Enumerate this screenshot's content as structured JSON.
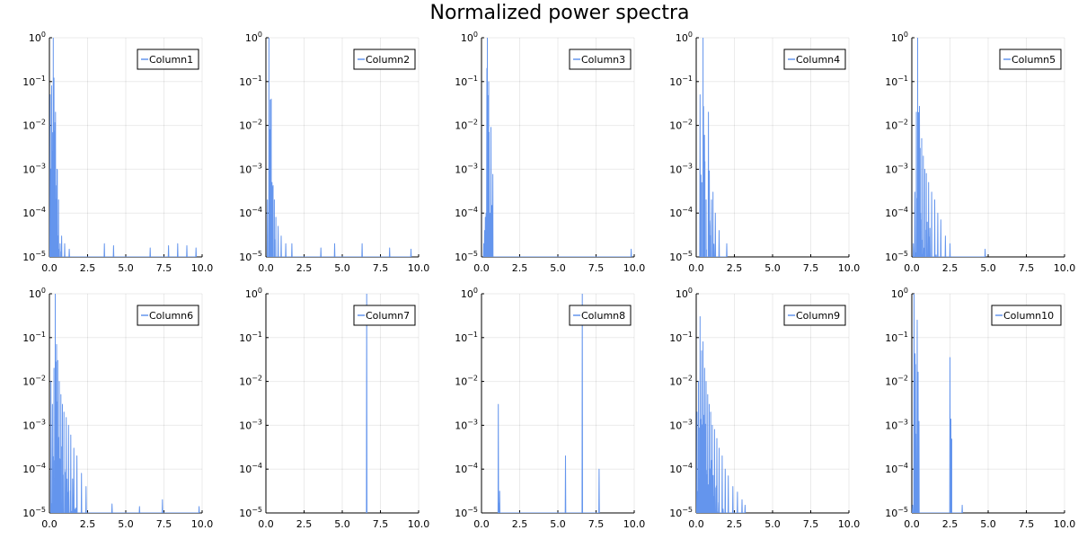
{
  "figure": {
    "title": "Normalized power spectra",
    "line_color": "#6495ed"
  },
  "chart_data": [
    {
      "type": "line",
      "legend": "Column1",
      "legend_position": "top-right",
      "grid": true,
      "xlim": [
        0,
        10
      ],
      "ylim": [
        1e-05,
        1
      ],
      "yscale": "log10",
      "x_ticks": [
        "0.0",
        "2.5",
        "5.0",
        "7.5",
        "10.0"
      ],
      "y_ticks": [
        "10^-5",
        "10^-4",
        "10^-3",
        "10^-2",
        "10^-1",
        "10^0"
      ],
      "peaks": [
        [
          0.05,
          0.05
        ],
        [
          0.1,
          0.001
        ],
        [
          0.15,
          0.08
        ],
        [
          0.2,
          0.002
        ],
        [
          0.25,
          1.0
        ],
        [
          0.3,
          0.12
        ],
        [
          0.35,
          0.0003
        ],
        [
          0.4,
          0.02
        ],
        [
          0.45,
          0.0001
        ],
        [
          0.5,
          0.001
        ],
        [
          0.55,
          3e-05
        ],
        [
          0.6,
          0.0002
        ],
        [
          0.7,
          2e-05
        ],
        [
          0.8,
          3e-05
        ],
        [
          1.0,
          2e-05
        ],
        [
          1.3,
          1.5e-05
        ],
        [
          3.6,
          2e-05
        ],
        [
          4.2,
          1.8e-05
        ],
        [
          6.6,
          1.6e-05
        ],
        [
          7.8,
          1.8e-05
        ],
        [
          8.4,
          2e-05
        ],
        [
          9.0,
          1.8e-05
        ],
        [
          9.6,
          1.6e-05
        ]
      ]
    },
    {
      "type": "line",
      "legend": "Column2",
      "legend_position": "top-right",
      "grid": true,
      "xlim": [
        0,
        10
      ],
      "ylim": [
        1e-05,
        1
      ],
      "yscale": "log10",
      "x_ticks": [
        "0.0",
        "2.5",
        "5.0",
        "7.5",
        "10.0"
      ],
      "y_ticks": [
        "10^-5",
        "10^-4",
        "10^-3",
        "10^-2",
        "10^-1",
        "10^0"
      ],
      "peaks": [
        [
          0.1,
          0.0002
        ],
        [
          0.2,
          1.0
        ],
        [
          0.25,
          0.003
        ],
        [
          0.3,
          0.0008
        ],
        [
          0.35,
          0.04
        ],
        [
          0.4,
          0.0005
        ],
        [
          0.45,
          0.0004
        ],
        [
          0.55,
          0.0002
        ],
        [
          0.65,
          8e-05
        ],
        [
          0.8,
          5e-05
        ],
        [
          1.0,
          3e-05
        ],
        [
          1.3,
          2e-05
        ],
        [
          1.7,
          2e-05
        ],
        [
          3.6,
          1.6e-05
        ],
        [
          4.5,
          2e-05
        ],
        [
          6.3,
          2e-05
        ],
        [
          8.1,
          1.6e-05
        ],
        [
          9.5,
          1.5e-05
        ]
      ]
    },
    {
      "type": "line",
      "legend": "Column3",
      "legend_position": "top-right",
      "grid": true,
      "xlim": [
        0,
        10
      ],
      "ylim": [
        1e-05,
        1
      ],
      "yscale": "log10",
      "x_ticks": [
        "0.0",
        "2.5",
        "5.0",
        "7.5",
        "10.0"
      ],
      "y_ticks": [
        "10^-5",
        "10^-4",
        "10^-3",
        "10^-2",
        "10^-1",
        "10^0"
      ],
      "peaks": [
        [
          0.15,
          2e-05
        ],
        [
          0.2,
          4e-05
        ],
        [
          0.25,
          8e-05
        ],
        [
          0.3,
          0.0001
        ],
        [
          0.35,
          0.2
        ],
        [
          0.38,
          1.0
        ],
        [
          0.45,
          0.0002
        ],
        [
          0.55,
          0.0001
        ],
        [
          0.62,
          0.009
        ],
        [
          0.7,
          3e-05
        ],
        [
          9.8,
          1.5e-05
        ]
      ]
    },
    {
      "type": "line",
      "legend": "Column4",
      "legend_position": "top-right",
      "grid": true,
      "xlim": [
        0,
        10
      ],
      "ylim": [
        1e-05,
        1
      ],
      "yscale": "log10",
      "x_ticks": [
        "0.0",
        "2.5",
        "5.0",
        "7.5",
        "10.0"
      ],
      "y_ticks": [
        "10^-5",
        "10^-4",
        "10^-3",
        "10^-2",
        "10^-1",
        "10^0"
      ],
      "peaks": [
        [
          0.25,
          0.05
        ],
        [
          0.35,
          0.00015
        ],
        [
          0.45,
          1.0
        ],
        [
          0.55,
          0.0005
        ],
        [
          0.65,
          0.0002
        ],
        [
          0.8,
          0.02
        ],
        [
          0.9,
          5e-05
        ],
        [
          1.0,
          0.0002
        ],
        [
          1.1,
          0.0003
        ],
        [
          1.25,
          0.0001
        ],
        [
          1.5,
          4e-05
        ],
        [
          2.0,
          2e-05
        ]
      ]
    },
    {
      "type": "line",
      "legend": "Column5",
      "legend_position": "top-right",
      "grid": true,
      "xlim": [
        0,
        10
      ],
      "ylim": [
        1e-05,
        1
      ],
      "yscale": "log10",
      "x_ticks": [
        "0.0",
        "2.5",
        "5.0",
        "7.5",
        "10.0"
      ],
      "y_ticks": [
        "10^-5",
        "10^-4",
        "10^-3",
        "10^-2",
        "10^-1",
        "10^0"
      ],
      "peaks": [
        [
          0.1,
          2e-05
        ],
        [
          0.2,
          0.0003
        ],
        [
          0.3,
          0.02
        ],
        [
          0.38,
          1.0
        ],
        [
          0.45,
          0.01
        ],
        [
          0.55,
          0.003
        ],
        [
          0.65,
          0.005
        ],
        [
          0.75,
          0.002
        ],
        [
          0.85,
          0.001
        ],
        [
          0.95,
          0.0008
        ],
        [
          1.1,
          0.0005
        ],
        [
          1.3,
          0.0003
        ],
        [
          1.5,
          0.0002
        ],
        [
          1.7,
          0.0001
        ],
        [
          1.9,
          7e-05
        ],
        [
          2.2,
          3e-05
        ],
        [
          2.5,
          2e-05
        ],
        [
          4.8,
          1.5e-05
        ]
      ]
    },
    {
      "type": "line",
      "legend": "Column6",
      "legend_position": "top-right",
      "grid": true,
      "xlim": [
        0,
        10
      ],
      "ylim": [
        1e-05,
        1
      ],
      "yscale": "log10",
      "x_ticks": [
        "0.0",
        "2.5",
        "5.0",
        "7.5",
        "10.0"
      ],
      "y_ticks": [
        "10^-5",
        "10^-4",
        "10^-3",
        "10^-2",
        "10^-1",
        "10^0"
      ],
      "peaks": [
        [
          0.1,
          0.01
        ],
        [
          0.2,
          0.003
        ],
        [
          0.3,
          0.02
        ],
        [
          0.38,
          1.0
        ],
        [
          0.45,
          0.025
        ],
        [
          0.55,
          0.03
        ],
        [
          0.65,
          0.01
        ],
        [
          0.75,
          0.005
        ],
        [
          0.85,
          0.003
        ],
        [
          0.95,
          0.002
        ],
        [
          1.1,
          0.0015
        ],
        [
          1.25,
          0.001
        ],
        [
          1.4,
          0.0006
        ],
        [
          1.6,
          0.0003
        ],
        [
          1.8,
          0.0002
        ],
        [
          2.1,
          8e-05
        ],
        [
          2.4,
          4e-05
        ],
        [
          4.1,
          1.6e-05
        ],
        [
          5.9,
          1.4e-05
        ],
        [
          7.4,
          2e-05
        ],
        [
          9.8,
          1.4e-05
        ]
      ]
    },
    {
      "type": "line",
      "legend": "Column7",
      "legend_position": "top-right",
      "grid": true,
      "xlim": [
        0,
        10
      ],
      "ylim": [
        1e-05,
        1
      ],
      "yscale": "log10",
      "x_ticks": [
        "0.0",
        "2.5",
        "5.0",
        "7.5",
        "10.0"
      ],
      "y_ticks": [
        "10^-5",
        "10^-4",
        "10^-3",
        "10^-2",
        "10^-1",
        "10^0"
      ],
      "peaks": [
        [
          6.6,
          1.0
        ]
      ]
    },
    {
      "type": "line",
      "legend": "Column8",
      "legend_position": "top-right",
      "grid": true,
      "xlim": [
        0,
        10
      ],
      "ylim": [
        1e-05,
        1
      ],
      "yscale": "log10",
      "x_ticks": [
        "0.0",
        "2.5",
        "5.0",
        "7.5",
        "10.0"
      ],
      "y_ticks": [
        "10^-5",
        "10^-4",
        "10^-3",
        "10^-2",
        "10^-1",
        "10^0"
      ],
      "peaks": [
        [
          1.1,
          0.003
        ],
        [
          5.5,
          0.0002
        ],
        [
          6.6,
          1.0
        ],
        [
          7.7,
          0.0001
        ]
      ]
    },
    {
      "type": "line",
      "legend": "Column9",
      "legend_position": "top-right",
      "grid": true,
      "xlim": [
        0,
        10
      ],
      "ylim": [
        1e-05,
        1
      ],
      "yscale": "log10",
      "x_ticks": [
        "0.0",
        "2.5",
        "5.0",
        "7.5",
        "10.0"
      ],
      "y_ticks": [
        "10^-5",
        "10^-4",
        "10^-3",
        "10^-2",
        "10^-1",
        "10^0"
      ],
      "peaks": [
        [
          0.05,
          0.002
        ],
        [
          0.15,
          0.01
        ],
        [
          0.25,
          0.3
        ],
        [
          0.35,
          0.05
        ],
        [
          0.45,
          0.08
        ],
        [
          0.55,
          0.02
        ],
        [
          0.65,
          0.01
        ],
        [
          0.75,
          0.005
        ],
        [
          0.85,
          0.003
        ],
        [
          0.95,
          0.002
        ],
        [
          1.05,
          0.001
        ],
        [
          1.2,
          0.0008
        ],
        [
          1.35,
          0.0005
        ],
        [
          1.5,
          0.0003
        ],
        [
          1.7,
          0.0002
        ],
        [
          1.9,
          0.0001
        ],
        [
          2.1,
          7e-05
        ],
        [
          2.4,
          4e-05
        ],
        [
          2.7,
          3e-05
        ],
        [
          3.0,
          2e-05
        ],
        [
          3.2,
          1.5e-05
        ]
      ]
    },
    {
      "type": "line",
      "legend": "Column10",
      "legend_position": "top-right",
      "grid": true,
      "xlim": [
        0,
        10
      ],
      "ylim": [
        1e-05,
        1
      ],
      "yscale": "log10",
      "x_ticks": [
        "0.0",
        "2.5",
        "5.0",
        "7.5",
        "10.0"
      ],
      "y_ticks": [
        "10^-5",
        "10^-4",
        "10^-3",
        "10^-2",
        "10^-1",
        "10^0"
      ],
      "peaks": [
        [
          0.05,
          1.5e-05
        ],
        [
          0.15,
          1.0
        ],
        [
          0.35,
          0.25
        ],
        [
          2.5,
          0.035
        ],
        [
          2.6,
          3e-05
        ],
        [
          3.3,
          1.5e-05
        ]
      ]
    }
  ]
}
